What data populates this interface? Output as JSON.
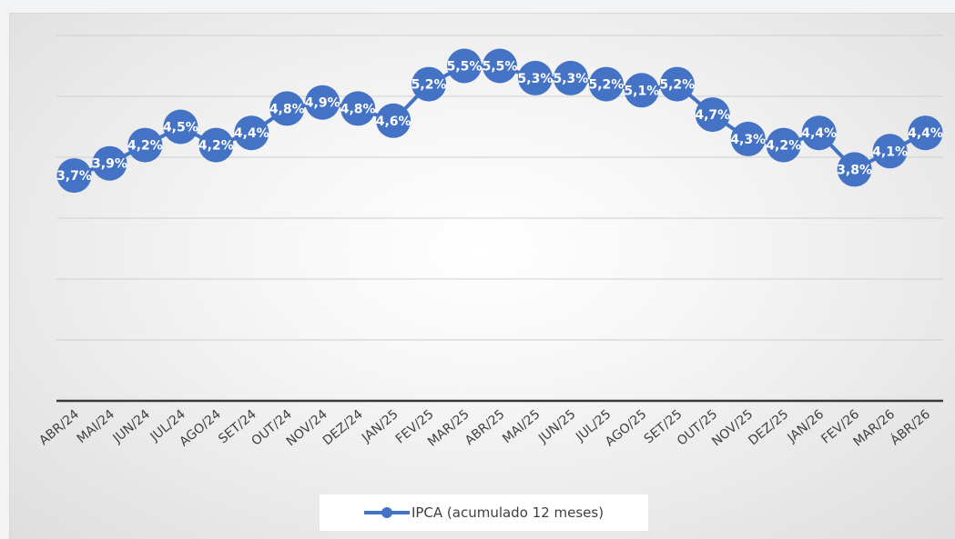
{
  "chart_data": {
    "type": "line",
    "categories": [
      "ABR/24",
      "MAI/24",
      "JUN/24",
      "JUL/24",
      "AGO/24",
      "SET/24",
      "OUT/24",
      "NOV/24",
      "DEZ/24",
      "JAN/25",
      "FEV/25",
      "MAR/25",
      "ABR/25",
      "MAI/25",
      "JUN/25",
      "JUL/25",
      "AGO/25",
      "SET/25",
      "OUT/25",
      "NOV/25",
      "DEZ/25",
      "JAN/26",
      "FEV/26",
      "MAR/26",
      "ÁBR/26"
    ],
    "series": [
      {
        "name": "IPCA (acumulado 12 meses)",
        "values": [
          3.7,
          3.9,
          4.2,
          4.5,
          4.2,
          4.4,
          4.8,
          4.9,
          4.8,
          4.6,
          5.2,
          5.5,
          5.5,
          5.3,
          5.3,
          5.2,
          5.1,
          5.2,
          4.7,
          4.3,
          4.2,
          4.4,
          3.8,
          4.1,
          4.4
        ],
        "labels": [
          "3,7%",
          "3,9%",
          "4,2%",
          "4,5%",
          "4,2%",
          "4,4%",
          "4,8%",
          "4,9%",
          "4,8%",
          "4,6%",
          "5,2%",
          "5,5%",
          "5,5%",
          "5,3%",
          "5,3%",
          "5,2%",
          "5,1%",
          "5,2%",
          "4,7%",
          "4,3%",
          "4,2%",
          "4,4%",
          "3,8%",
          "4,1%",
          "4,4%"
        ],
        "color": "#4472c4"
      }
    ],
    "ylim": [
      0,
      6
    ],
    "grid": true,
    "legend_position": "bottom",
    "title": "",
    "xlabel": "",
    "ylabel": ""
  }
}
